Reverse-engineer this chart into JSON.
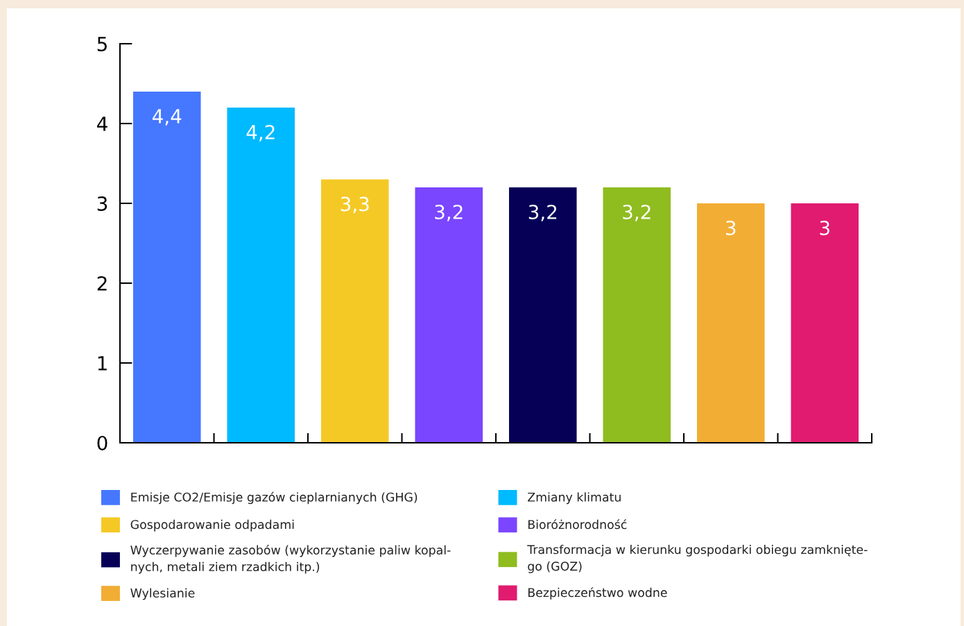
{
  "chart_data": {
    "type": "bar",
    "stacked": true,
    "categories": [
      null,
      null,
      null,
      null,
      null,
      null,
      null,
      null
    ],
    "series": [
      {
        "name": "Emisje CO2/Emisje gazów cieplarnianych (GHG)",
        "color": "#4677ff",
        "values": [
          4.4,
          null,
          null,
          null,
          null,
          null,
          null,
          null
        ],
        "value_labels": [
          "4,4",
          null,
          null,
          null,
          null,
          null,
          null,
          null
        ]
      },
      {
        "name": "Zmiany klimatu",
        "color": "#00baff",
        "values": [
          null,
          4.2,
          null,
          null,
          null,
          null,
          null,
          null
        ],
        "value_labels": [
          null,
          "4,2",
          null,
          null,
          null,
          null,
          null,
          null
        ]
      },
      {
        "name": "Gospodarowanie odpadami",
        "color": "#f4c926",
        "values": [
          null,
          null,
          3.3,
          null,
          null,
          null,
          null,
          null
        ],
        "value_labels": [
          null,
          null,
          "3,3",
          null,
          null,
          null,
          null,
          null
        ]
      },
      {
        "name": "Bioróżnorodność",
        "color": "#7a46ff",
        "values": [
          null,
          null,
          null,
          3.2,
          null,
          null,
          null,
          null
        ],
        "value_labels": [
          null,
          null,
          null,
          "3,2",
          null,
          null,
          null,
          null
        ]
      },
      {
        "name": "Wyczerpywanie zasobów (wykorzystanie paliw kopal-\nnych, metali ziem rzadkich itp.)",
        "color": "#070057",
        "values": [
          null,
          null,
          null,
          null,
          3.2,
          null,
          null,
          null
        ],
        "value_labels": [
          null,
          null,
          null,
          null,
          "3,2",
          null,
          null,
          null
        ]
      },
      {
        "name": "Transformacja w kierunku gospodarki obiegu zamknięte-\ngo (GOZ)",
        "color": "#8fbc1f",
        "values": [
          null,
          null,
          null,
          null,
          null,
          3.2,
          null,
          null
        ],
        "value_labels": [
          null,
          null,
          null,
          null,
          null,
          "3,2",
          null,
          null
        ]
      },
      {
        "name": "Wylesianie",
        "color": "#f2ad35",
        "values": [
          null,
          null,
          null,
          null,
          null,
          null,
          3,
          null
        ],
        "value_labels": [
          null,
          null,
          null,
          null,
          null,
          null,
          "3",
          null
        ]
      },
      {
        "name": "Bezpieczeństwo wodne",
        "color": "#e11b6f",
        "values": [
          null,
          null,
          null,
          null,
          null,
          null,
          null,
          3
        ],
        "value_labels": [
          null,
          null,
          null,
          null,
          null,
          null,
          null,
          "3"
        ]
      }
    ],
    "ylim": [
      0,
      5
    ],
    "yticks": [
      0,
      1,
      2,
      3,
      4,
      5
    ],
    "tick_labels": "y",
    "legend": "bottom",
    "grid": false
  }
}
